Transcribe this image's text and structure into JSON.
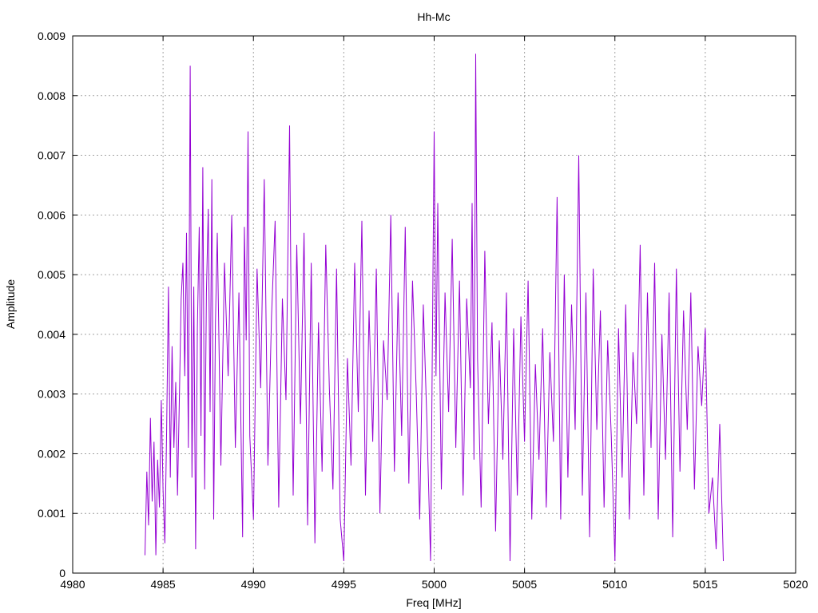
{
  "chart_data": {
    "type": "line",
    "title": "Hh-Mc",
    "xlabel": "Freq [MHz]",
    "ylabel": "Amplitude",
    "xlim": [
      4980,
      5020
    ],
    "ylim": [
      0,
      0.009
    ],
    "x_ticks": [
      4980,
      4985,
      4990,
      4995,
      5000,
      5005,
      5010,
      5015,
      5020
    ],
    "y_ticks": [
      "0",
      "0.001",
      "0.002",
      "0.003",
      "0.004",
      "0.005",
      "0.006",
      "0.007",
      "0.008",
      "0.009"
    ],
    "grid": true,
    "legend": "none",
    "color": "#9400d3",
    "series": [
      {
        "x": [
          4984.0,
          4984.1,
          4984.2,
          4984.3,
          4984.4,
          4984.5,
          4984.6,
          4984.7,
          4984.8,
          4984.9,
          4985.0,
          4985.1,
          4985.2,
          4985.3,
          4985.4,
          4985.5,
          4985.6,
          4985.7,
          4985.8,
          4985.9,
          4986.0,
          4986.1,
          4986.2,
          4986.3,
          4986.4,
          4986.5,
          4986.6,
          4986.7,
          4986.8,
          4986.9,
          4987.0,
          4987.1,
          4987.2,
          4987.3,
          4987.4,
          4987.5,
          4987.6,
          4987.7,
          4987.8,
          4987.9,
          4988.0,
          4988.2,
          4988.4,
          4988.6,
          4988.8,
          4989.0,
          4989.2,
          4989.4,
          4989.5,
          4989.6,
          4989.7,
          4989.8,
          4990.0,
          4990.2,
          4990.4,
          4990.6,
          4990.8,
          4991.0,
          4991.2,
          4991.4,
          4991.6,
          4991.8,
          4992.0,
          4992.1,
          4992.2,
          4992.4,
          4992.6,
          4992.8,
          4993.0,
          4993.2,
          4993.4,
          4993.6,
          4993.8,
          4994.0,
          4994.2,
          4994.4,
          4994.6,
          4994.8,
          4995.0,
          4995.2,
          4995.4,
          4995.6,
          4995.8,
          4996.0,
          4996.2,
          4996.4,
          4996.6,
          4996.8,
          4997.0,
          4997.2,
          4997.4,
          4997.6,
          4997.8,
          4998.0,
          4998.2,
          4998.4,
          4998.6,
          4998.8,
          4999.0,
          4999.2,
          4999.4,
          4999.6,
          4999.8,
          5000.0,
          5000.1,
          5000.2,
          5000.4,
          5000.6,
          5000.8,
          5001.0,
          5001.2,
          5001.4,
          5001.6,
          5001.8,
          5002.0,
          5002.1,
          5002.2,
          5002.3,
          5002.4,
          5002.6,
          5002.8,
          5003.0,
          5003.2,
          5003.4,
          5003.6,
          5003.8,
          5004.0,
          5004.2,
          5004.4,
          5004.6,
          5004.8,
          5005.0,
          5005.2,
          5005.4,
          5005.6,
          5005.8,
          5006.0,
          5006.2,
          5006.4,
          5006.6,
          5006.8,
          5007.0,
          5007.2,
          5007.4,
          5007.6,
          5007.8,
          5008.0,
          5008.2,
          5008.4,
          5008.6,
          5008.8,
          5009.0,
          5009.2,
          5009.4,
          5009.6,
          5009.8,
          5010.0,
          5010.2,
          5010.4,
          5010.6,
          5010.8,
          5011.0,
          5011.2,
          5011.4,
          5011.6,
          5011.8,
          5012.0,
          5012.2,
          5012.4,
          5012.6,
          5012.8,
          5013.0,
          5013.2,
          5013.4,
          5013.6,
          5013.8,
          5014.0,
          5014.2,
          5014.4,
          5014.6,
          5014.8,
          5015.0,
          5015.2,
          5015.4,
          5015.6,
          5015.8,
          5016.0
        ],
        "values": [
          0.0003,
          0.0017,
          0.0008,
          0.0026,
          0.0012,
          0.0022,
          0.0003,
          0.0019,
          0.0011,
          0.0029,
          0.0014,
          0.0005,
          0.0024,
          0.0048,
          0.0016,
          0.0038,
          0.0021,
          0.0032,
          0.0013,
          0.0029,
          0.0046,
          0.0052,
          0.0033,
          0.0057,
          0.0021,
          0.0085,
          0.0016,
          0.0048,
          0.0004,
          0.0041,
          0.0058,
          0.0023,
          0.0068,
          0.0014,
          0.0047,
          0.0061,
          0.0027,
          0.0066,
          0.0009,
          0.0042,
          0.0057,
          0.0018,
          0.0052,
          0.0033,
          0.006,
          0.0021,
          0.0047,
          0.0006,
          0.0058,
          0.0039,
          0.0074,
          0.0023,
          0.0009,
          0.0051,
          0.0031,
          0.0066,
          0.0018,
          0.0043,
          0.0059,
          0.0011,
          0.0046,
          0.0029,
          0.0075,
          0.0038,
          0.0013,
          0.0055,
          0.0025,
          0.0057,
          0.0008,
          0.0052,
          0.0005,
          0.0042,
          0.0017,
          0.0055,
          0.0031,
          0.0014,
          0.0051,
          0.0009,
          0.0002,
          0.0036,
          0.0018,
          0.0052,
          0.0027,
          0.0059,
          0.0013,
          0.0044,
          0.0022,
          0.0051,
          0.001,
          0.0039,
          0.0029,
          0.006,
          0.0017,
          0.0047,
          0.0023,
          0.0058,
          0.0015,
          0.0049,
          0.0031,
          0.0009,
          0.0045,
          0.0025,
          0.0002,
          0.0074,
          0.0033,
          0.0062,
          0.0014,
          0.0047,
          0.0027,
          0.0056,
          0.0021,
          0.0049,
          0.0013,
          0.0046,
          0.0031,
          0.0062,
          0.0019,
          0.0087,
          0.0036,
          0.0011,
          0.0054,
          0.0025,
          0.0042,
          0.0007,
          0.0039,
          0.0019,
          0.0047,
          0.0002,
          0.0041,
          0.0013,
          0.0043,
          0.0022,
          0.0049,
          0.0009,
          0.0035,
          0.0019,
          0.0041,
          0.0011,
          0.0037,
          0.0022,
          0.0063,
          0.0009,
          0.005,
          0.0016,
          0.0045,
          0.0024,
          0.007,
          0.0013,
          0.0047,
          0.0006,
          0.0051,
          0.0024,
          0.0044,
          0.0011,
          0.0039,
          0.0023,
          0.0002,
          0.0041,
          0.0016,
          0.0045,
          0.0009,
          0.0037,
          0.0025,
          0.0055,
          0.0013,
          0.0047,
          0.0021,
          0.0052,
          0.0009,
          0.004,
          0.0019,
          0.0047,
          0.0006,
          0.0051,
          0.0017,
          0.0044,
          0.0024,
          0.0047,
          0.0014,
          0.0038,
          0.0028,
          0.0041,
          0.001,
          0.0016,
          0.0004,
          0.0025,
          0.0002
        ]
      }
    ]
  }
}
